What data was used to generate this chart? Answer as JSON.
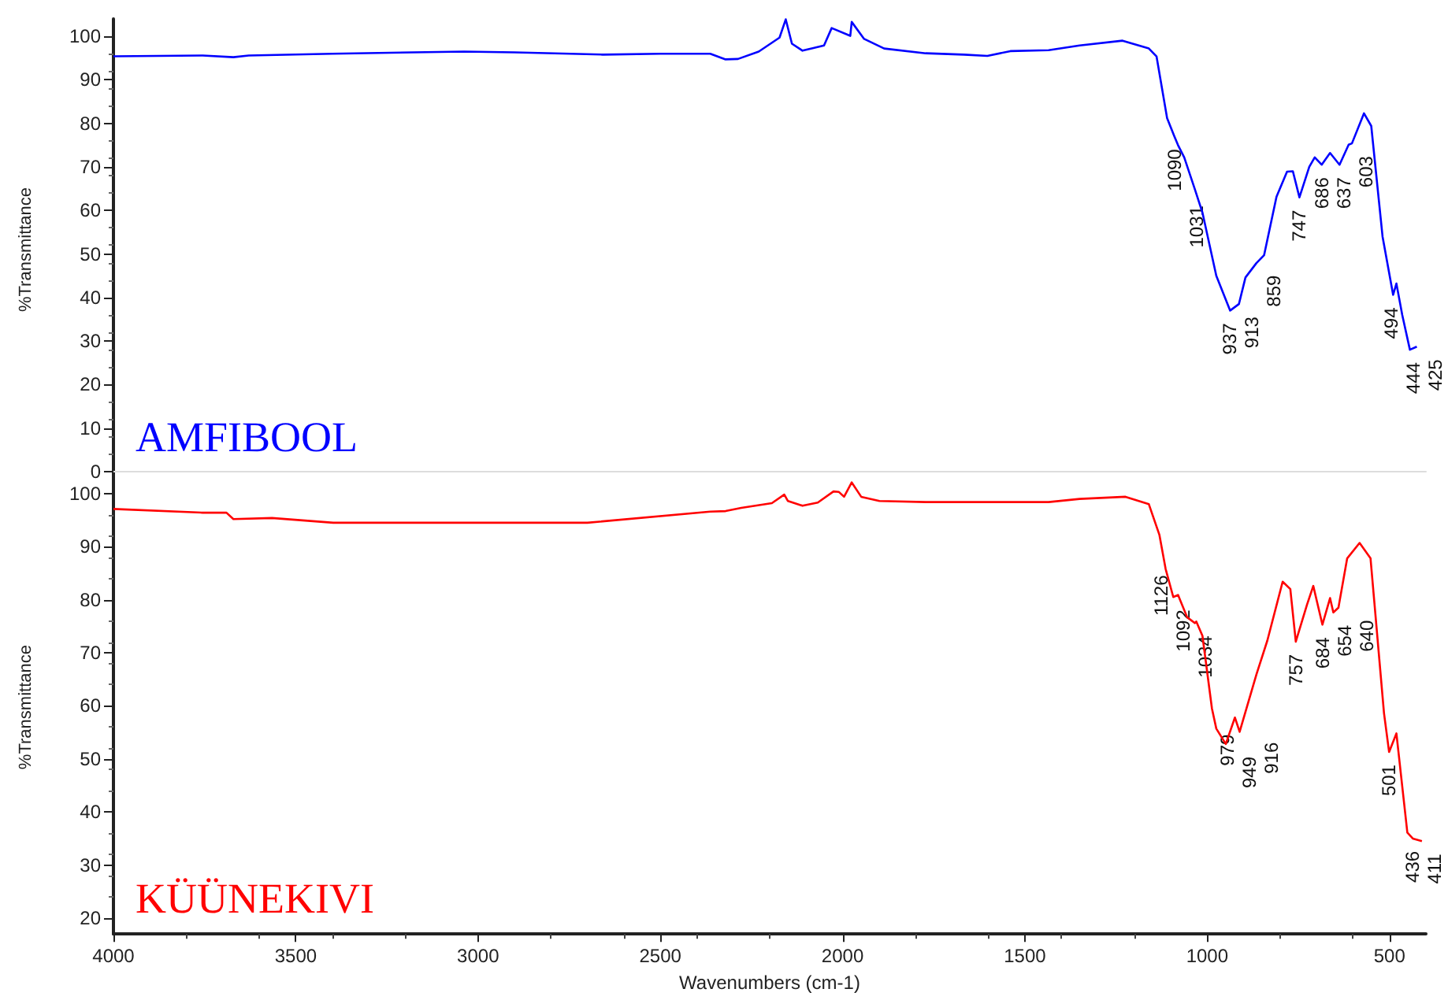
{
  "chart_data": [
    {
      "type": "line",
      "ylabel": "%Transmittance",
      "xlim": [
        4000,
        400
      ],
      "xticks": [
        4000,
        3500,
        3000,
        2500,
        2000,
        1500,
        1000,
        500
      ],
      "ylim": [
        -2,
        104
      ],
      "yticks": [
        0,
        10,
        20,
        30,
        40,
        50,
        60,
        70,
        80,
        90,
        100
      ],
      "tick_labels": "y",
      "marker": "none",
      "series": [
        {
          "name": "AMFIBOOL",
          "color": "#0000ff",
          "x": [
            4000,
            3755,
            3671,
            3629,
            3400,
            3038,
            2900,
            2658,
            2500,
            2363,
            2321,
            2287,
            2230,
            2173,
            2156,
            2139,
            2110,
            2080,
            2051,
            2030,
            1979,
            1975,
            1941,
            1886,
            1772,
            1667,
            1603,
            1540,
            1435,
            1350,
            1232,
            1160,
            1139,
            1110,
            1090,
            1080,
            1063,
            1034,
            1013,
            975,
            937,
            913,
            895,
            865,
            844,
            810,
            781,
            765,
            747,
            720,
            705,
            686,
            663,
            637,
            612,
            603,
            570,
            550,
            519,
            490,
            481,
            465,
            444,
            425
          ],
          "values": [
            95.4,
            95.6,
            95.2,
            95.6,
            96,
            96.5,
            96.3,
            95.8,
            96,
            96,
            94.7,
            94.8,
            96.5,
            99.7,
            103.9,
            98.3,
            96.7,
            97.3,
            97.9,
            101.9,
            100.1,
            103.3,
            99.4,
            97.2,
            96.1,
            95.8,
            95.5,
            96.6,
            96.8,
            97.9,
            99,
            97.2,
            95.4,
            81.2,
            77,
            75,
            72.2,
            64.9,
            59.5,
            45,
            37,
            38.5,
            44.6,
            47.9,
            49.7,
            63.1,
            68.9,
            69,
            63,
            70,
            72.2,
            70.5,
            73.2,
            70.5,
            75.1,
            75.4,
            82.3,
            79.4,
            54,
            40.6,
            43.2,
            36,
            28,
            28.7
          ]
        }
      ],
      "annotations": [
        {
          "text": "1090",
          "x": 1090,
          "y": 77
        },
        {
          "text": "1031",
          "x": 1031,
          "y": 64
        },
        {
          "text": "937",
          "x": 937,
          "y": 37
        },
        {
          "text": "913",
          "x": 913,
          "y": 38.5
        },
        {
          "text": "859",
          "x": 859,
          "y": 48
        },
        {
          "text": "747",
          "x": 747,
          "y": 63
        },
        {
          "text": "686",
          "x": 686,
          "y": 70.5
        },
        {
          "text": "637",
          "x": 637,
          "y": 70.5
        },
        {
          "text": "603",
          "x": 603,
          "y": 75.4
        },
        {
          "text": "494",
          "x": 494,
          "y": 40.6
        },
        {
          "text": "444",
          "x": 444,
          "y": 28
        },
        {
          "text": "425",
          "x": 425,
          "y": 28.7
        }
      ]
    },
    {
      "type": "line",
      "xlabel": "Wavenumbers (cm-1)",
      "ylabel": "%Transmittance",
      "xlim": [
        4000,
        400
      ],
      "xticks": [
        4000,
        3500,
        3000,
        2500,
        2000,
        1500,
        1000,
        500
      ],
      "ylim": [
        17,
        102.5
      ],
      "yticks": [
        20,
        30,
        40,
        50,
        60,
        70,
        80,
        90,
        100
      ],
      "marker": "none",
      "series": [
        {
          "name": "KÜÜNEKIVI",
          "color": "#ff0000",
          "x": [
            4000,
            3755,
            3690,
            3671,
            3565,
            3397,
            3038,
            2700,
            2363,
            2321,
            2278,
            2194,
            2160,
            2150,
            2110,
            2068,
            2025,
            2010,
            1996,
            1975,
            1949,
            1899,
            1772,
            1435,
            1350,
            1224,
            1160,
            1131,
            1114,
            1093,
            1080,
            1055,
            1034,
            1030,
            1013,
            987,
            975,
            949,
            924,
            911,
            865,
            835,
            793,
            772,
            757,
            726,
            709,
            684,
            663,
            654,
            640,
            616,
            582,
            552,
            515,
            501,
            481,
            451,
            436,
            411
          ],
          "values": [
            97.1,
            96.4,
            96.4,
            95.2,
            95.4,
            94.5,
            94.5,
            94.5,
            96.6,
            96.7,
            97.3,
            98.2,
            99.8,
            98.6,
            97.7,
            98.3,
            100.4,
            100.3,
            99.4,
            102.1,
            99.4,
            98.6,
            98.4,
            98.4,
            99,
            99.4,
            98,
            92.2,
            85.8,
            80.5,
            80.9,
            76.7,
            75.6,
            75.9,
            73.2,
            59.5,
            55.7,
            52.8,
            57.8,
            55.1,
            65.9,
            72.3,
            83.4,
            82,
            72.1,
            79.1,
            82.6,
            75.3,
            80.3,
            77.6,
            78.5,
            87.8,
            90.7,
            87.8,
            58.6,
            51.3,
            54.8,
            36.1,
            35,
            34.5
          ]
        }
      ],
      "annotations": [
        {
          "text": "1126",
          "x": 1126,
          "y": 87
        },
        {
          "text": "1092",
          "x": 1092,
          "y": 80.5
        },
        {
          "text": "1034",
          "x": 1034,
          "y": 75.6
        },
        {
          "text": "979",
          "x": 979,
          "y": 57
        },
        {
          "text": "949",
          "x": 949,
          "y": 52.8
        },
        {
          "text": "916",
          "x": 916,
          "y": 55.5
        },
        {
          "text": "757",
          "x": 757,
          "y": 72.1
        },
        {
          "text": "684",
          "x": 684,
          "y": 75.3
        },
        {
          "text": "654",
          "x": 654,
          "y": 77.6
        },
        {
          "text": "640",
          "x": 640,
          "y": 78.5
        },
        {
          "text": "501",
          "x": 501,
          "y": 51.3
        },
        {
          "text": "436",
          "x": 436,
          "y": 35
        },
        {
          "text": "411",
          "x": 411,
          "y": 34.5
        }
      ]
    }
  ]
}
